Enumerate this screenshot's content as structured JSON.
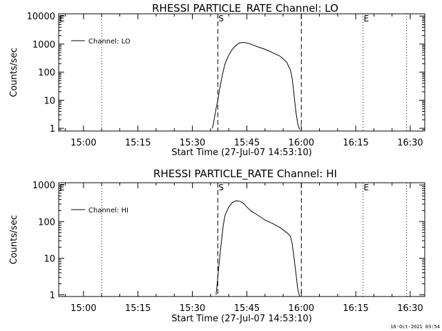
{
  "chart_data": [
    {
      "type": "line",
      "title": "RHESSI PARTICLE_RATE Channel: LO",
      "ylabel": "Counts/sec",
      "xlabel": "Start Time (27-Jul-07 14:53:10)",
      "yscale": "log",
      "ylim": [
        0.8,
        12000
      ],
      "xlim": [
        "14:53:10",
        "16:34:00"
      ],
      "x_ticks": [
        "15:00",
        "15:15",
        "15:30",
        "15:45",
        "16:00",
        "16:15",
        "16:30"
      ],
      "y_ticks": [
        "1",
        "10",
        "100",
        "1000",
        "10000"
      ],
      "legend": "Channel: LO",
      "legend_position": "top-left",
      "markers": [
        {
          "label": "E",
          "time": "14:53:10",
          "style": "dotted"
        },
        {
          "label": "",
          "time": "15:05:00",
          "style": "dotted"
        },
        {
          "label": "S",
          "time": "15:37:00",
          "style": "dashed"
        },
        {
          "label": "",
          "time": "16:00:00",
          "style": "dashed"
        },
        {
          "label": "E",
          "time": "16:17:00",
          "style": "dotted"
        },
        {
          "label": "",
          "time": "16:29:00",
          "style": "dotted"
        }
      ],
      "series": [
        {
          "name": "Channel: LO",
          "x": [
            "15:35:30",
            "15:36:00",
            "15:36:30",
            "15:37:00",
            "15:37:30",
            "15:38:00",
            "15:38:30",
            "15:39:00",
            "15:40:00",
            "15:41:00",
            "15:42:00",
            "15:43:00",
            "15:44:00",
            "15:45:00",
            "15:46:00",
            "15:47:00",
            "15:48:00",
            "15:50:00",
            "15:52:00",
            "15:54:00",
            "15:55:00",
            "15:56:00",
            "15:57:00",
            "15:57:30",
            "15:58:00",
            "15:58:30",
            "15:59:00",
            "15:59:30"
          ],
          "values": [
            1,
            2,
            5,
            10,
            25,
            55,
            110,
            200,
            400,
            650,
            900,
            1100,
            1150,
            1100,
            1000,
            900,
            800,
            650,
            500,
            380,
            300,
            220,
            120,
            60,
            15,
            4,
            1.5,
            0.9
          ]
        }
      ]
    },
    {
      "type": "line",
      "title": "RHESSI PARTICLE_RATE Channel: HI",
      "ylabel": "Counts/sec",
      "xlabel": "Start Time (27-Jul-07 14:53:10)",
      "yscale": "log",
      "ylim": [
        0.9,
        1150
      ],
      "xlim": [
        "14:53:10",
        "16:34:00"
      ],
      "x_ticks": [
        "15:00",
        "15:15",
        "15:30",
        "15:45",
        "16:00",
        "16:15",
        "16:30"
      ],
      "y_ticks": [
        "1",
        "10",
        "100",
        "1000"
      ],
      "legend": "Channel: HI",
      "legend_position": "top-left",
      "markers": [
        {
          "label": "E",
          "time": "14:53:10",
          "style": "dotted"
        },
        {
          "label": "",
          "time": "15:05:00",
          "style": "dotted"
        },
        {
          "label": "S",
          "time": "15:37:00",
          "style": "dashed"
        },
        {
          "label": "",
          "time": "16:00:00",
          "style": "dashed"
        },
        {
          "label": "E",
          "time": "16:17:00",
          "style": "dotted"
        },
        {
          "label": "",
          "time": "16:29:00",
          "style": "dotted"
        }
      ],
      "series": [
        {
          "name": "Channel: HI",
          "x": [
            "15:36:30",
            "15:37:00",
            "15:37:30",
            "15:38:00",
            "15:38:30",
            "15:39:00",
            "15:40:00",
            "15:41:00",
            "15:42:00",
            "15:43:00",
            "15:44:00",
            "15:45:00",
            "15:46:00",
            "15:48:00",
            "15:50:00",
            "15:52:00",
            "15:54:00",
            "15:56:00",
            "15:57:00",
            "15:57:30",
            "15:58:00",
            "15:58:30",
            "15:59:00",
            "15:59:30"
          ],
          "values": [
            1,
            3,
            10,
            30,
            80,
            150,
            250,
            330,
            370,
            360,
            320,
            250,
            200,
            150,
            110,
            90,
            70,
            50,
            40,
            25,
            10,
            4,
            1.5,
            0.9
          ]
        }
      ]
    }
  ],
  "timestamp": "16-Oct-2021 03:54"
}
